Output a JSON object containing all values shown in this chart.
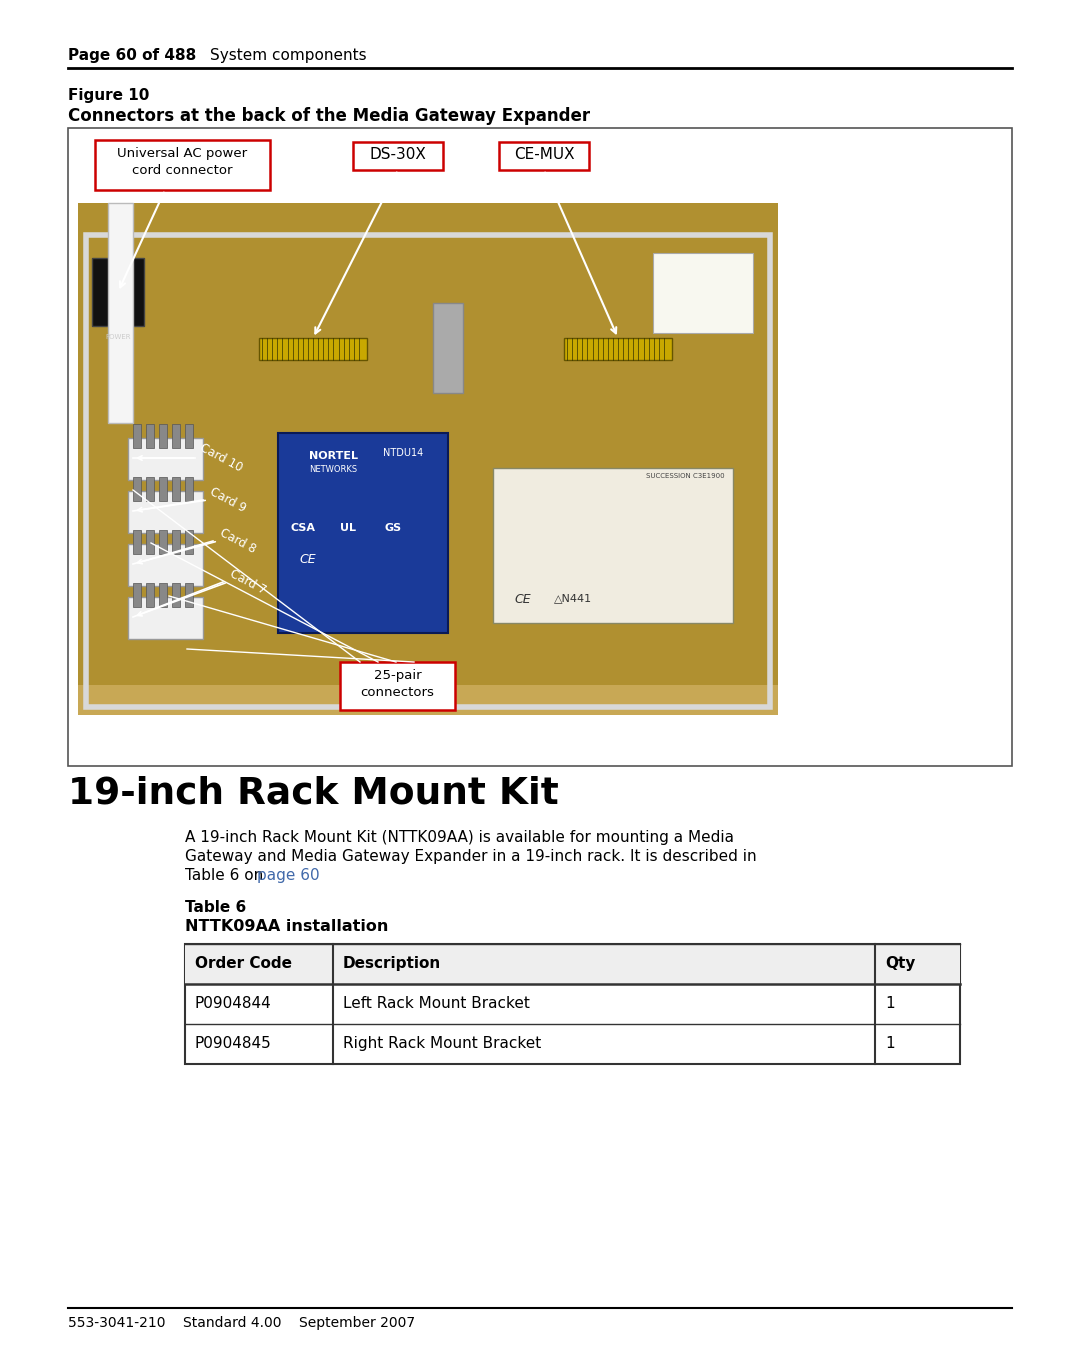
{
  "page_header_bold": "Page 60 of 488",
  "page_header_regular": "System components",
  "figure_label": "Figure 10",
  "figure_caption": "Connectors at the back of the Media Gateway Expander",
  "label_ac_power": "Universal AC power\ncord connector",
  "label_ds30x": "DS-30X",
  "label_cemux": "CE-MUX",
  "label_25pair": "25-pair\nconnectors",
  "card_labels": [
    "Card 10",
    "Card 9",
    "Card 8",
    "Card 7"
  ],
  "section_title": "19-inch Rack Mount Kit",
  "body_text_line1": "A 19-inch Rack Mount Kit (NTTK09AA) is available for mounting a Media",
  "body_text_line2": "Gateway and Media Gateway Expander in a 19-inch rack. It is described in",
  "body_text_line3": "Table 6 on ",
  "body_text_link": "page 60",
  "table_title_line1": "Table 6",
  "table_title_line2": "NTTK09AA installation",
  "table_headers": [
    "Order Code",
    "Description",
    "Qty"
  ],
  "table_rows": [
    [
      "P0904844",
      "Left Rack Mount Bracket",
      "1"
    ],
    [
      "P0904845",
      "Right Rack Mount Bracket",
      "1"
    ]
  ],
  "footer_text": "553-3041-210    Standard 4.00    September 2007",
  "bg_color": "#ffffff",
  "text_color": "#000000",
  "link_color": "#4169aa",
  "red_box_color": "#cc0000",
  "header_line_color": "#000000"
}
